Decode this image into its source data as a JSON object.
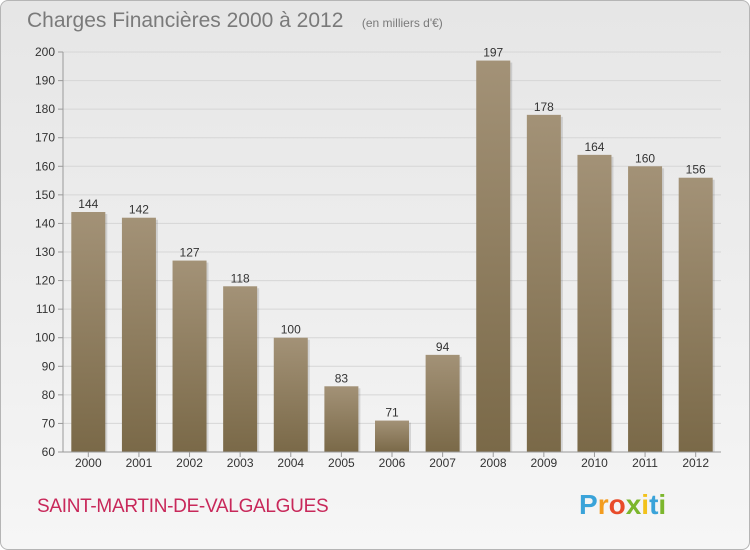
{
  "title": "Charges Financières 2000 à 2012",
  "unit_note": "(en milliers d'€)",
  "commune": "SAINT-MARTIN-DE-VALGALGUES",
  "logo": {
    "letters": [
      "P",
      "r",
      "o",
      "x",
      "i",
      "t",
      "i"
    ],
    "colors": [
      "#3aa3d9",
      "#f39c1f",
      "#e84b2a",
      "#7cb62d",
      "#f2c21b",
      "#3aa3d9",
      "#7cb62d"
    ]
  },
  "colors": {
    "bar_top": "#a39277",
    "bar_bottom": "#7a6948",
    "grid": "#d6d6d6",
    "axis": "#9a9a9a",
    "text": "#333333"
  },
  "chart_data": {
    "type": "bar",
    "categories": [
      "2000",
      "2001",
      "2002",
      "2003",
      "2004",
      "2005",
      "2006",
      "2007",
      "2008",
      "2009",
      "2010",
      "2011",
      "2012"
    ],
    "values": [
      144,
      142,
      127,
      118,
      100,
      83,
      71,
      94,
      197,
      178,
      164,
      160,
      156
    ],
    "ylim": [
      60,
      200
    ],
    "yticks": [
      60,
      70,
      80,
      90,
      100,
      110,
      120,
      130,
      140,
      150,
      160,
      170,
      180,
      190,
      200
    ],
    "grid": true,
    "legend": "none"
  }
}
